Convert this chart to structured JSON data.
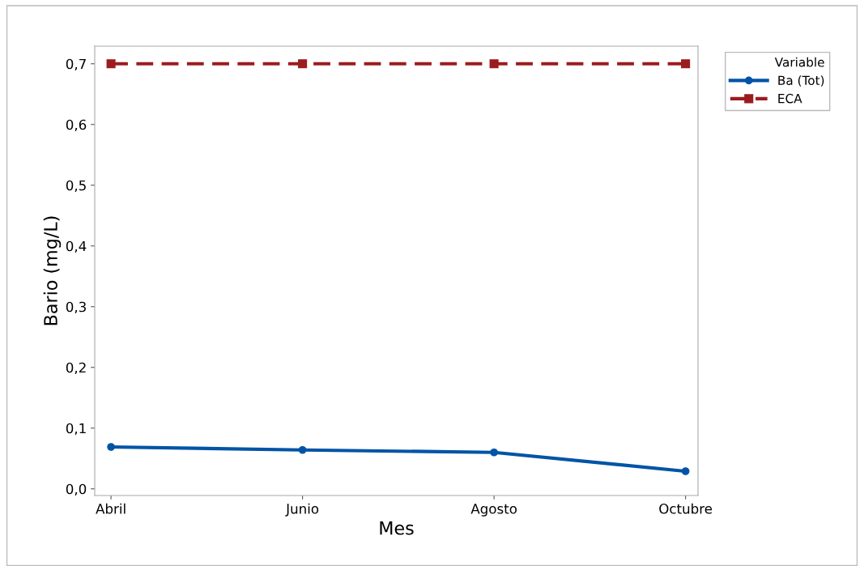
{
  "chart_data": {
    "type": "line",
    "xlabel": "Mes",
    "ylabel": "Bario (mg/L)",
    "legend_title": "Variable",
    "legend": "top right",
    "categories": [
      "Abril",
      "Junio",
      "Agosto",
      "Octubre"
    ],
    "series": [
      {
        "name": "Ba (Tot)",
        "color": "#0054a6",
        "values": [
          0.069,
          0.064,
          0.06,
          0.029
        ],
        "marker": "circle",
        "line_style": "solid"
      },
      {
        "name": "ECA",
        "color": "#9b1c1f",
        "values": [
          0.7,
          0.7,
          0.7,
          0.7
        ],
        "marker": "square",
        "line_style": "dashed"
      }
    ],
    "ylim": [
      -0.011,
      0.729
    ],
    "yticks": [
      {
        "value": 0,
        "label": "0,0"
      },
      {
        "value": 0.1,
        "label": "0,1"
      },
      {
        "value": 0.2,
        "label": "0,2"
      },
      {
        "value": 0.3,
        "label": "0,3"
      },
      {
        "value": 0.4,
        "label": "0,4"
      },
      {
        "value": 0.5,
        "label": "0,5"
      },
      {
        "value": 0.6,
        "label": "0,6"
      },
      {
        "value": 0.7,
        "label": "0,7"
      }
    ],
    "grid": false
  }
}
